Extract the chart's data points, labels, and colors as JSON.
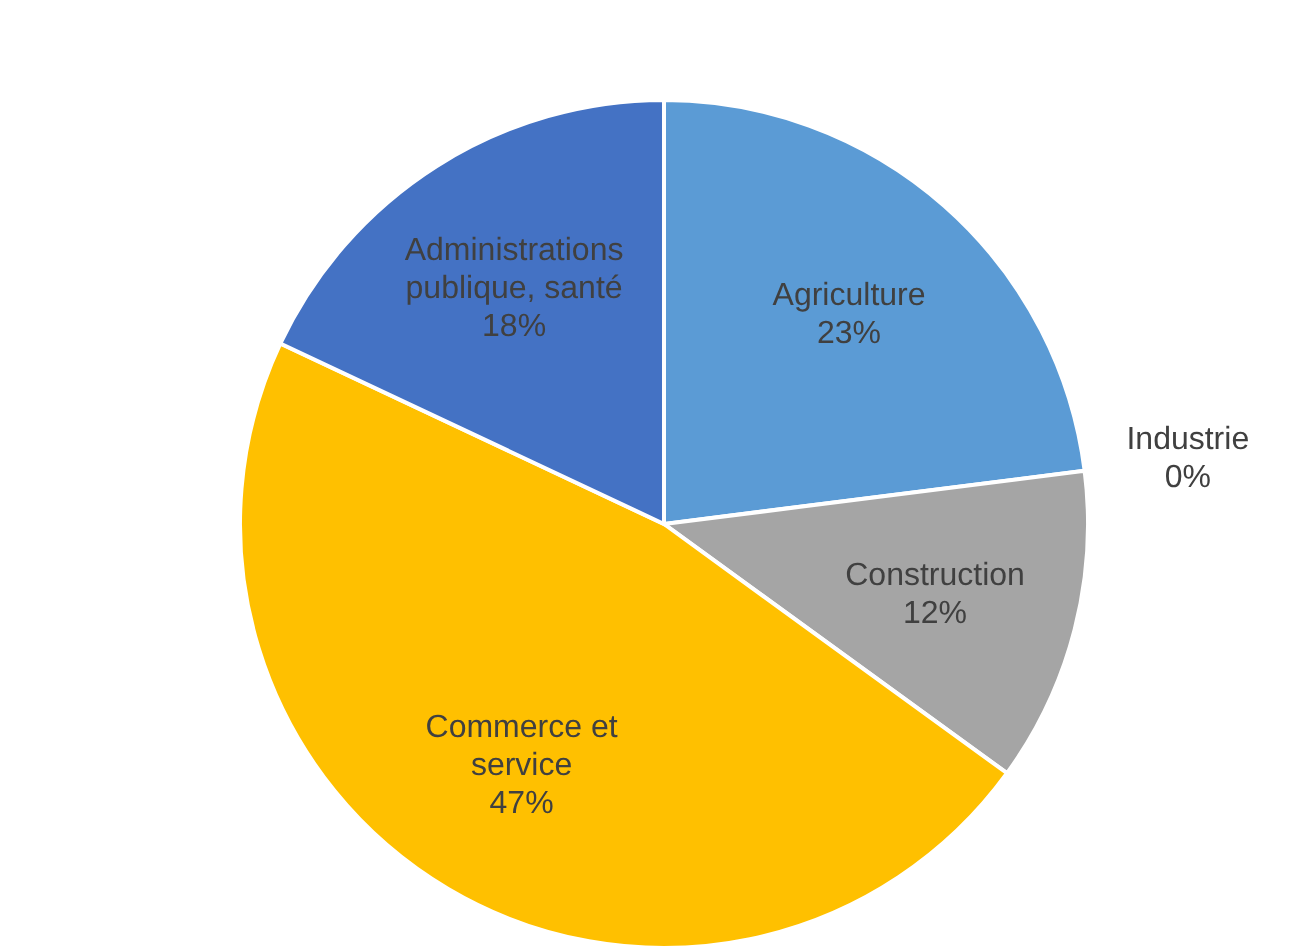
{
  "chart_data": {
    "type": "pie",
    "categories": [
      "Agriculture",
      "Industrie",
      "Construction",
      "Commerce et service",
      "Administrations publique, santé"
    ],
    "values": [
      23,
      0,
      12,
      47,
      18
    ],
    "colors": [
      "#5b9bd5",
      null,
      "#a5a5a5",
      "#ffc000",
      "#4472c4"
    ],
    "value_labels": [
      "23%",
      "0%",
      "12%",
      "47%",
      "18%"
    ]
  }
}
